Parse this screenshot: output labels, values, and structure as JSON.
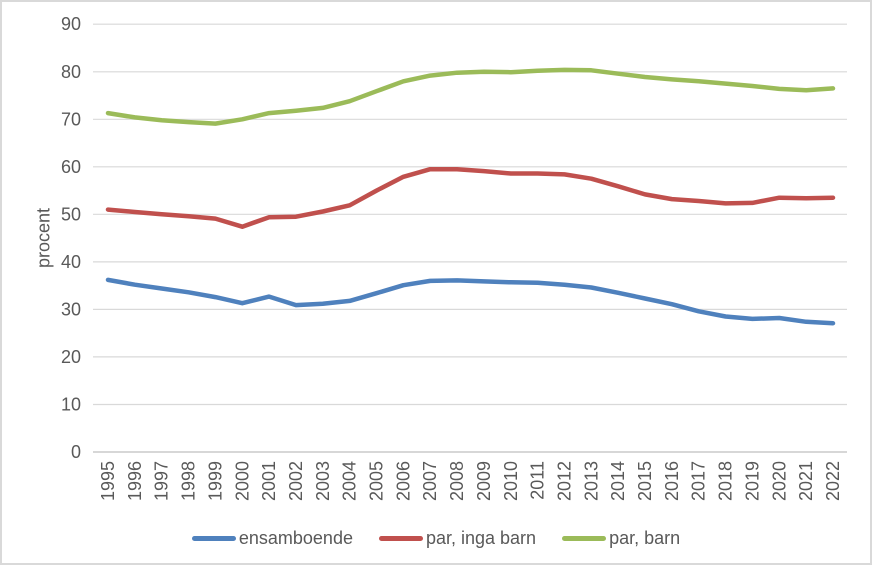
{
  "chart_data": {
    "type": "line",
    "title": "",
    "xlabel": "",
    "ylabel": "procent",
    "ylim": [
      0,
      90
    ],
    "yticks": [
      0,
      10,
      20,
      30,
      40,
      50,
      60,
      70,
      80,
      90
    ],
    "grid": true,
    "legend_position": "bottom",
    "x": [
      1995,
      1996,
      1997,
      1998,
      1999,
      2000,
      2001,
      2002,
      2003,
      2004,
      2005,
      2006,
      2007,
      2008,
      2009,
      2010,
      2011,
      2012,
      2013,
      2014,
      2015,
      2016,
      2017,
      2018,
      2019,
      2020,
      2021,
      2022
    ],
    "series": [
      {
        "name": "ensamboende",
        "color": "#4F81BD",
        "values": [
          36.2,
          35.2,
          34.4,
          33.6,
          32.6,
          31.3,
          32.7,
          30.9,
          31.2,
          31.8,
          33.4,
          35.1,
          36.0,
          36.1,
          35.9,
          35.7,
          35.6,
          35.2,
          34.6,
          33.5,
          32.3,
          31.1,
          29.6,
          28.5,
          28.0,
          28.2,
          27.4,
          27.1
        ]
      },
      {
        "name": "par, inga barn",
        "color": "#C0504D",
        "values": [
          51.0,
          50.5,
          50.0,
          49.6,
          49.1,
          47.4,
          49.4,
          49.5,
          50.6,
          51.9,
          55.0,
          57.9,
          59.5,
          59.5,
          59.1,
          58.6,
          58.6,
          58.4,
          57.5,
          55.9,
          54.2,
          53.2,
          52.8,
          52.3,
          52.4,
          53.5,
          53.4,
          53.5
        ]
      },
      {
        "name": "par, barn",
        "color": "#9BBB59",
        "values": [
          71.3,
          70.4,
          69.8,
          69.4,
          69.1,
          70.0,
          71.3,
          71.8,
          72.4,
          73.8,
          75.9,
          78.0,
          79.2,
          79.8,
          80.0,
          79.9,
          80.2,
          80.4,
          80.3,
          79.6,
          78.9,
          78.4,
          78.0,
          77.5,
          77.0,
          76.4,
          76.1,
          76.5
        ]
      }
    ],
    "styles": {
      "gridline_color": "#D9D9D9",
      "axis_line_color": "#BFBFBF",
      "tick_label_color": "#595959",
      "plot_background": "#FFFFFF",
      "border_color": "#D9D9D9",
      "line_width": 4.5
    }
  }
}
